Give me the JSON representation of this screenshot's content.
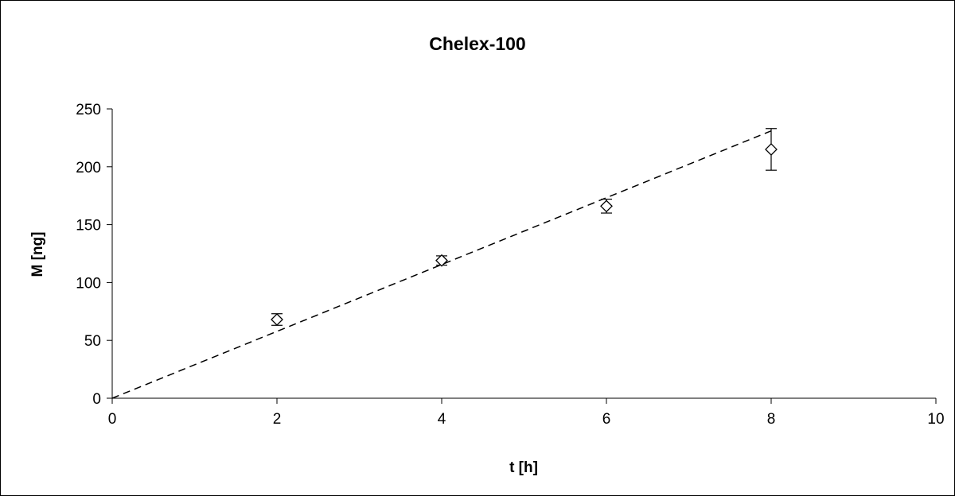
{
  "chart_data": {
    "type": "scatter",
    "title": "Chelex-100",
    "xlabel": "t [h]",
    "ylabel": "M [ng]",
    "xlim": [
      0,
      10
    ],
    "ylim": [
      0,
      250
    ],
    "x_ticks": [
      "0",
      "2",
      "4",
      "6",
      "8",
      "10"
    ],
    "y_ticks": [
      "0",
      "50",
      "100",
      "150",
      "200",
      "250"
    ],
    "grid": false,
    "legend": "none",
    "series": [
      {
        "kind": "points",
        "marker": "diamond-open",
        "color": "#000000",
        "points": [
          {
            "x": 2,
            "y": 68,
            "err": 5
          },
          {
            "x": 4,
            "y": 119,
            "err": 4
          },
          {
            "x": 6,
            "y": 166,
            "err": 6
          },
          {
            "x": 8,
            "y": 215,
            "err": 18
          }
        ]
      },
      {
        "kind": "line",
        "style": "dashed",
        "color": "#000000",
        "x": [
          0,
          8
        ],
        "y": [
          0,
          231
        ]
      }
    ]
  }
}
